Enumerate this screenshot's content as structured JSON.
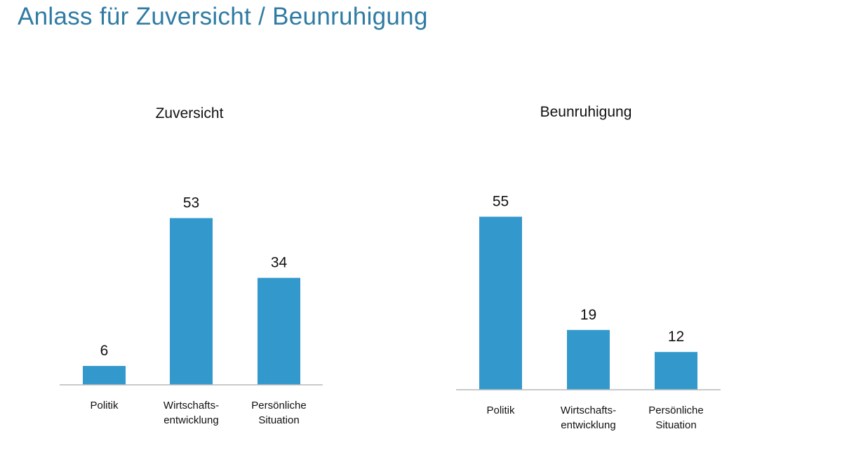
{
  "page": {
    "title": "Anlass für Zuversicht / Beunruhigung"
  },
  "colors": {
    "title": "#2f7ba3",
    "bar": "#3399cc",
    "baseline": "#b8b8b8"
  },
  "chart_data": [
    {
      "type": "bar",
      "title": "Zuversicht",
      "categories": [
        [
          "Politik"
        ],
        [
          "Wirtschafts-",
          "entwicklung"
        ],
        [
          "Persönliche",
          "Situation"
        ]
      ],
      "values": [
        6,
        53,
        34
      ],
      "xlabel": "",
      "ylabel": "",
      "ylim": [
        0,
        55
      ],
      "grid": false
    },
    {
      "type": "bar",
      "title": "Beunruhigung",
      "categories": [
        [
          "Politik"
        ],
        [
          "Wirtschafts-",
          "entwicklung"
        ],
        [
          "Persönliche",
          "Situation"
        ]
      ],
      "values": [
        55,
        19,
        12
      ],
      "xlabel": "",
      "ylabel": "",
      "ylim": [
        0,
        55
      ],
      "grid": false
    }
  ]
}
